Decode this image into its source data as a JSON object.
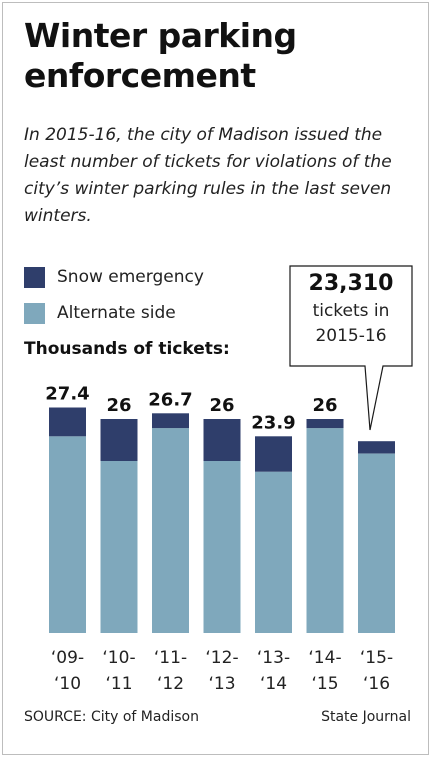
{
  "title": "Winter parking enforcement",
  "subtitle": "In 2015-16, the city of Madison issued the least number of tickets for violations of the city’s winter parking rules in the last seven winters.",
  "colors": {
    "snow": "#2f3e6b",
    "alternate": "#7fa8bc"
  },
  "legend": [
    {
      "label": "Snow emergency",
      "color": "#2f3e6b"
    },
    {
      "label": "Alternate side",
      "color": "#7fa8bc"
    }
  ],
  "units_label": "Thousands of tickets:",
  "callout": {
    "value": "23,310",
    "line1": "tickets in",
    "line2": "2015-16"
  },
  "chart_data": {
    "type": "bar",
    "stacked": true,
    "categories": [
      "'09-'10",
      "'10-'11",
      "'11-'12",
      "'12-'13",
      "'13-'14",
      "'14-'15",
      "'15-'16"
    ],
    "category_lines": [
      [
        "‘09-",
        "‘10"
      ],
      [
        "‘10-",
        "‘11"
      ],
      [
        "‘11-",
        "‘12"
      ],
      [
        "‘12-",
        "‘13"
      ],
      [
        "‘13-",
        "‘14"
      ],
      [
        "‘14-",
        "‘15"
      ],
      [
        "‘15-",
        "‘16"
      ]
    ],
    "series": [
      {
        "name": "Alternate side",
        "values": [
          23.9,
          20.9,
          24.9,
          20.9,
          19.6,
          24.9,
          21.8
        ]
      },
      {
        "name": "Snow emergency",
        "values": [
          3.5,
          5.1,
          1.8,
          5.1,
          4.3,
          1.1,
          1.5
        ]
      }
    ],
    "totals": [
      27.4,
      26,
      26.7,
      26,
      23.9,
      26,
      23.31
    ],
    "total_labels": [
      "27.4",
      "26",
      "26.7",
      "26",
      "23.9",
      "26",
      ""
    ],
    "ylim": [
      0,
      30
    ],
    "grid": false,
    "legend_position": "top-left"
  },
  "source": "SOURCE: City of Madison",
  "credit": "State Journal"
}
